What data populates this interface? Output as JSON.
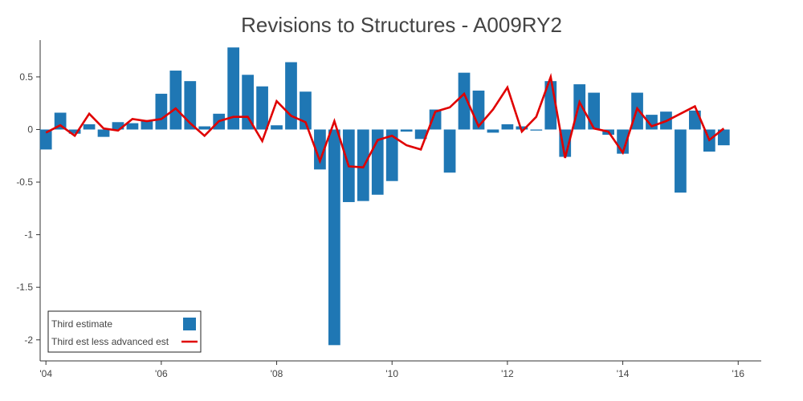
{
  "chart_data": {
    "type": "bar",
    "title": "Revisions to Structures - A009RY2",
    "xlabel": "",
    "ylabel": "",
    "x_start_year": 2004,
    "x_range": [
      2003.9,
      2016.4
    ],
    "ylim": [
      -2.2,
      0.85
    ],
    "yticks": [
      0.5,
      0,
      -0.5,
      -1,
      -1.5,
      -2
    ],
    "ytick_labels": [
      "0.5",
      "0",
      "-0.5",
      "-1",
      "-1.5",
      "-2"
    ],
    "xticks": [
      2004,
      2006,
      2008,
      2010,
      2012,
      2014,
      2016
    ],
    "xtick_labels": [
      "'04",
      "'06",
      "'08",
      "'10",
      "'12",
      "'14",
      "'16"
    ],
    "grid": false,
    "legend_position": "bottom-left",
    "colors": {
      "bar": "#1f77b4",
      "line": "#e00000",
      "axis": "#333333"
    },
    "series": [
      {
        "name": "Third estimate",
        "type": "bar",
        "values": [
          -0.19,
          0.16,
          -0.04,
          0.05,
          -0.07,
          0.07,
          0.06,
          0.09,
          0.34,
          0.56,
          0.46,
          0.03,
          0.15,
          0.78,
          0.52,
          0.41,
          0.04,
          0.64,
          0.36,
          -0.38,
          -2.05,
          -0.69,
          -0.68,
          -0.62,
          -0.49,
          -0.02,
          -0.09,
          0.19,
          -0.41,
          0.54,
          0.37,
          -0.03,
          0.05,
          0.03,
          -0.01,
          0.46,
          -0.26,
          0.43,
          0.35,
          -0.05,
          -0.23,
          0.35,
          0.14,
          0.17,
          -0.6,
          0.18,
          -0.21,
          -0.15
        ]
      },
      {
        "name": "Third est less advanced est",
        "type": "line",
        "values": [
          -0.03,
          0.04,
          -0.06,
          0.15,
          0.01,
          -0.01,
          0.1,
          0.08,
          0.1,
          0.2,
          0.06,
          -0.06,
          0.08,
          0.12,
          0.12,
          -0.11,
          0.27,
          0.13,
          0.07,
          -0.3,
          0.08,
          -0.35,
          -0.36,
          -0.1,
          -0.06,
          -0.15,
          -0.19,
          0.17,
          0.21,
          0.34,
          0.03,
          0.19,
          0.4,
          -0.02,
          0.12,
          0.5,
          -0.27,
          0.26,
          0.01,
          -0.02,
          -0.22,
          0.2,
          0.03,
          0.08,
          0.15,
          0.22,
          -0.1,
          0.01
        ]
      }
    ]
  }
}
